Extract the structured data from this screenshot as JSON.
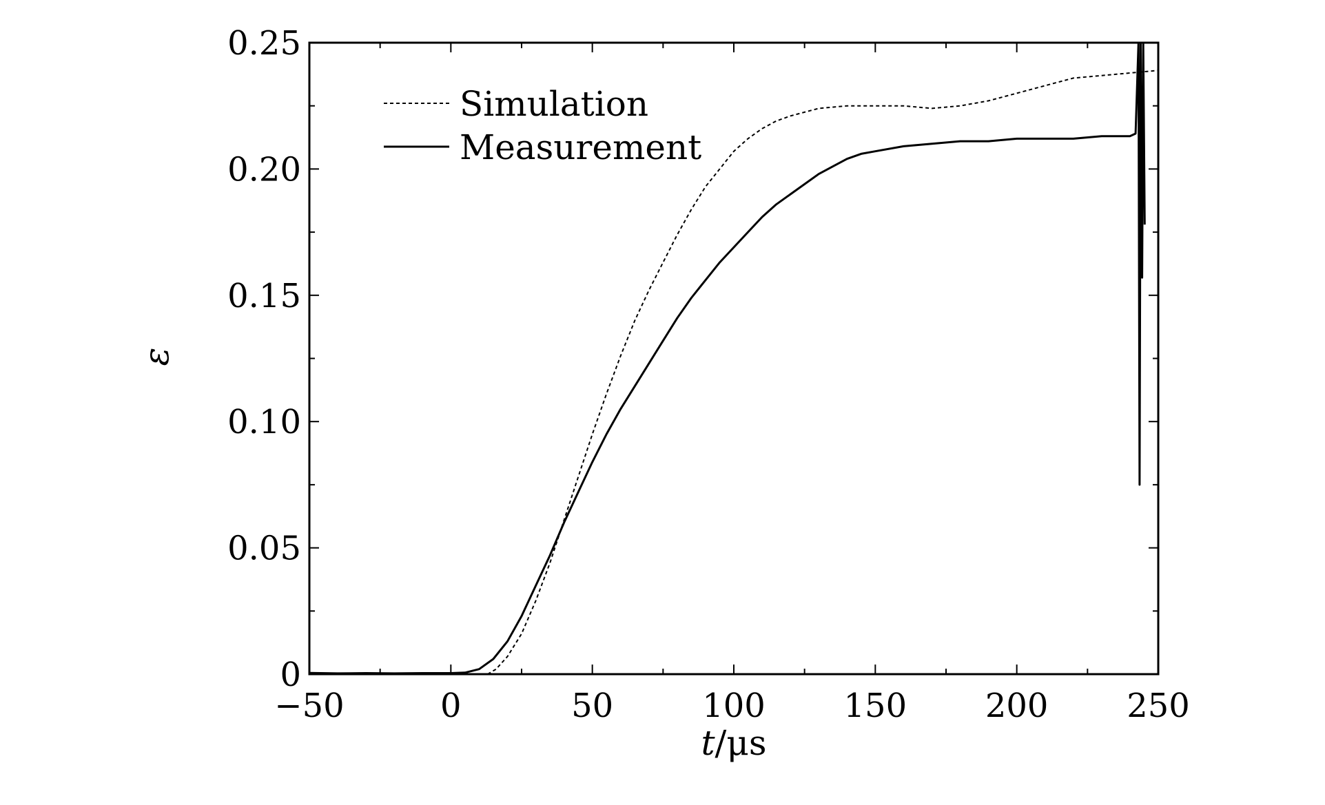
{
  "chart_data": {
    "type": "line",
    "xlabel_italic": "t",
    "xlabel_unit": "/μs",
    "ylabel": "ε",
    "xlim": [
      -50,
      250
    ],
    "ylim": [
      0,
      0.25
    ],
    "x_ticks": [
      -50,
      0,
      50,
      100,
      150,
      200,
      250
    ],
    "x_tick_labels": [
      "−50",
      "0",
      "50",
      "100",
      "150",
      "200",
      "250"
    ],
    "y_ticks": [
      0,
      0.05,
      0.1,
      0.15,
      0.2,
      0.25
    ],
    "y_tick_labels": [
      "0",
      "0.05",
      "0.10",
      "0.15",
      "0.20",
      "0.25"
    ],
    "grid": false,
    "legend_position": "top-left",
    "series": [
      {
        "name": "Simulation",
        "style": "dotted",
        "points": [
          [
            13,
            0
          ],
          [
            16,
            0.002
          ],
          [
            20,
            0.007
          ],
          [
            25,
            0.016
          ],
          [
            30,
            0.029
          ],
          [
            35,
            0.044
          ],
          [
            40,
            0.061
          ],
          [
            45,
            0.078
          ],
          [
            50,
            0.095
          ],
          [
            55,
            0.111
          ],
          [
            60,
            0.126
          ],
          [
            65,
            0.14
          ],
          [
            70,
            0.152
          ],
          [
            75,
            0.163
          ],
          [
            80,
            0.174
          ],
          [
            85,
            0.184
          ],
          [
            90,
            0.193
          ],
          [
            95,
            0.2
          ],
          [
            100,
            0.207
          ],
          [
            105,
            0.212
          ],
          [
            110,
            0.216
          ],
          [
            115,
            0.219
          ],
          [
            120,
            0.221
          ],
          [
            130,
            0.224
          ],
          [
            140,
            0.225
          ],
          [
            150,
            0.225
          ],
          [
            160,
            0.225
          ],
          [
            170,
            0.224
          ],
          [
            180,
            0.225
          ],
          [
            190,
            0.227
          ],
          [
            200,
            0.23
          ],
          [
            210,
            0.233
          ],
          [
            220,
            0.236
          ],
          [
            230,
            0.237
          ],
          [
            240,
            0.238
          ],
          [
            250,
            0.239
          ]
        ]
      },
      {
        "name": "Measurement",
        "style": "solid",
        "points": [
          [
            -50,
            0.0005
          ],
          [
            -40,
            0.0003
          ],
          [
            -30,
            0.0004
          ],
          [
            -20,
            0.0003
          ],
          [
            -10,
            0.0004
          ],
          [
            0,
            0.0004
          ],
          [
            5,
            0.0006
          ],
          [
            10,
            0.002
          ],
          [
            15,
            0.006
          ],
          [
            20,
            0.013
          ],
          [
            25,
            0.023
          ],
          [
            30,
            0.035
          ],
          [
            35,
            0.047
          ],
          [
            40,
            0.06
          ],
          [
            45,
            0.072
          ],
          [
            50,
            0.084
          ],
          [
            55,
            0.095
          ],
          [
            60,
            0.105
          ],
          [
            65,
            0.114
          ],
          [
            70,
            0.123
          ],
          [
            75,
            0.132
          ],
          [
            80,
            0.141
          ],
          [
            85,
            0.149
          ],
          [
            90,
            0.156
          ],
          [
            95,
            0.163
          ],
          [
            100,
            0.169
          ],
          [
            105,
            0.175
          ],
          [
            110,
            0.181
          ],
          [
            115,
            0.186
          ],
          [
            120,
            0.19
          ],
          [
            125,
            0.194
          ],
          [
            130,
            0.198
          ],
          [
            135,
            0.201
          ],
          [
            140,
            0.204
          ],
          [
            145,
            0.206
          ],
          [
            150,
            0.207
          ],
          [
            160,
            0.209
          ],
          [
            170,
            0.21
          ],
          [
            180,
            0.211
          ],
          [
            190,
            0.211
          ],
          [
            200,
            0.212
          ],
          [
            210,
            0.212
          ],
          [
            220,
            0.212
          ],
          [
            230,
            0.213
          ],
          [
            240,
            0.213
          ],
          [
            242,
            0.214
          ],
          [
            243,
            0.25
          ],
          [
            243.4,
            0.075
          ],
          [
            243.8,
            0.25
          ],
          [
            244.3,
            0.157
          ],
          [
            244.7,
            0.25
          ],
          [
            245.2,
            0.178
          ]
        ]
      }
    ]
  }
}
